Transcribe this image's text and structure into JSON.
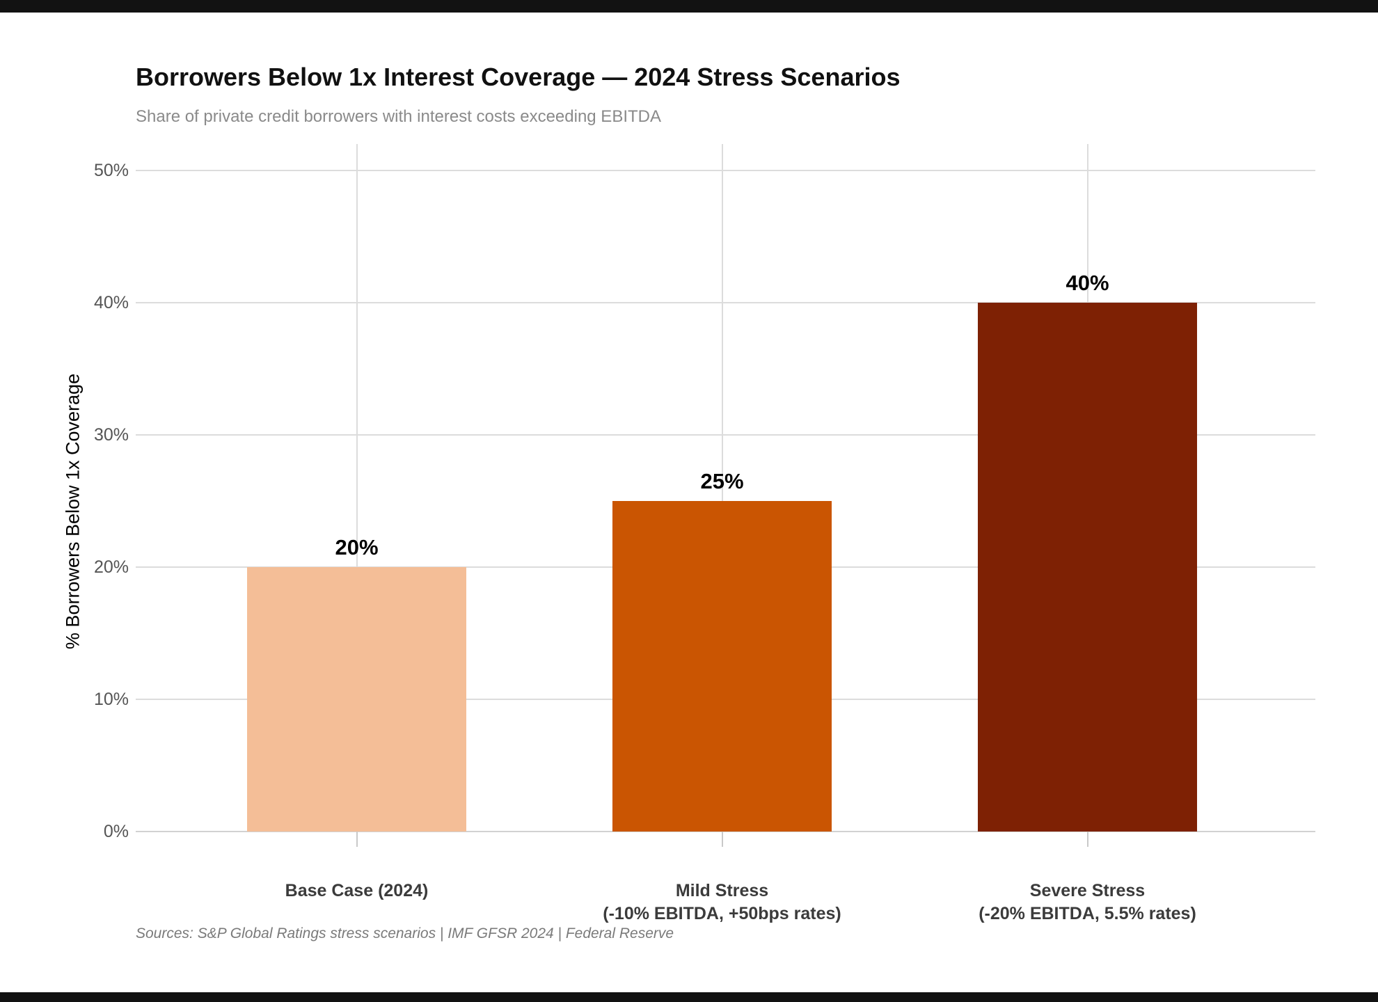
{
  "chart_data": {
    "type": "bar",
    "title": "Borrowers Below 1x Interest Coverage — 2024 Stress Scenarios",
    "subtitle": "Share of private credit borrowers with interest costs exceeding EBITDA",
    "ylabel": "% Borrowers Below 1x Coverage",
    "xlabel": "",
    "categories": [
      "Base Case (2024)",
      "Mild Stress (-10% EBITDA, +50bps rates)",
      "Severe Stress (-20% EBITDA, 5.5% rates)"
    ],
    "category_lines": [
      [
        "Base Case (2024)"
      ],
      [
        "Mild Stress",
        "(-10% EBITDA, +50bps rates)"
      ],
      [
        "Severe Stress",
        "(-20% EBITDA, 5.5% rates)"
      ]
    ],
    "values": [
      20,
      25,
      40
    ],
    "value_labels": [
      "20%",
      "25%",
      "40%"
    ],
    "bar_colors": [
      "#F4BE97",
      "#CA5502",
      "#7E2104"
    ],
    "ylim": [
      0,
      52
    ],
    "yticks": [
      0,
      10,
      20,
      30,
      40,
      50
    ],
    "ytick_labels": [
      "0%",
      "10%",
      "20%",
      "30%",
      "40%",
      "50%"
    ],
    "grid": true,
    "legend": "none",
    "source": "Sources: S&P Global Ratings stress scenarios | IMF GFSR 2024 | Federal Reserve"
  },
  "colors": {
    "letterbox": "#121212",
    "panel_bg": "#FFFFFF",
    "gridline": "#DCDCDC",
    "baseline": "#D2D2D2",
    "tick": "#C9C9C9",
    "title": "#111111",
    "subtitle": "#8A8A8A",
    "ytick_label": "#555555",
    "category_label": "#3B3B3B",
    "value_label": "#000000",
    "source": "#7A7A7A"
  }
}
